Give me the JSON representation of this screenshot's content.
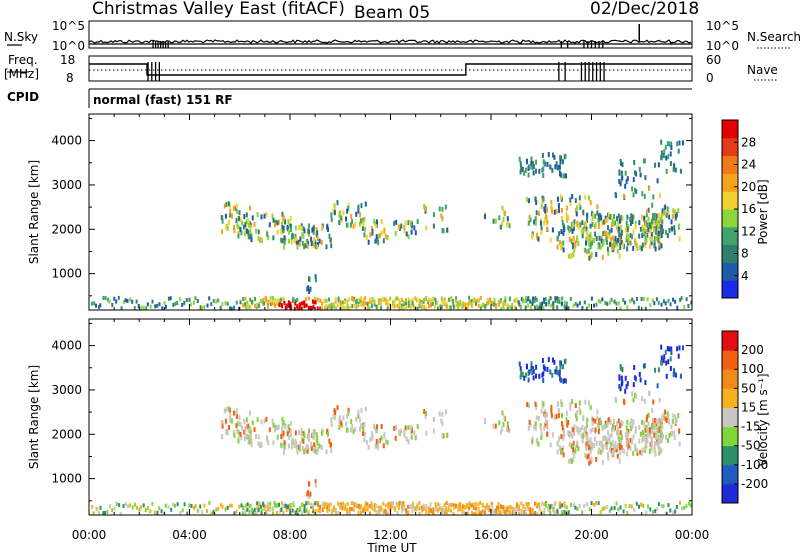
{
  "header": {
    "title": "Christmas Valley East (fitACF)",
    "beam": "Beam 05",
    "date": "02/Dec/2018"
  },
  "status_panels": {
    "noise": {
      "left_label": "N.Sky",
      "right_label": "N.Search",
      "left_ticks": [
        "10^5",
        "10^0"
      ],
      "right_ticks": [
        "10^5",
        "10^0"
      ]
    },
    "freq": {
      "left_label_1": "Freq.",
      "left_label_2": "[MHz]",
      "right_label": "Nave",
      "left_ticks": [
        "18",
        "8"
      ],
      "right_ticks": [
        "60",
        "0"
      ]
    },
    "cpid": {
      "label": "CPID",
      "text": "normal (fast) 151 RF"
    }
  },
  "chart_data": [
    {
      "type": "heatmap",
      "name": "power",
      "ylabel": "Slant Range [km]",
      "yticks": [
        1000,
        2000,
        3000,
        4000
      ],
      "ylim": [
        180,
        4600
      ],
      "xlim_hours": [
        0,
        24
      ],
      "colorbar": {
        "label": "Power [dB]",
        "ticks": [
          "4",
          "8",
          "12",
          "16",
          "20",
          "24",
          "28"
        ],
        "colors": [
          "#1a2be6",
          "#1f5aa8",
          "#2f7f6f",
          "#3fa36a",
          "#8cd63c",
          "#f2d12e",
          "#f5a21e",
          "#f07a1a",
          "#e63a16",
          "#e00000"
        ]
      }
    },
    {
      "type": "heatmap",
      "name": "velocity",
      "ylabel": "Slant Range [km]",
      "yticks": [
        1000,
        2000,
        3000,
        4000
      ],
      "ylim": [
        180,
        4600
      ],
      "xlim_hours": [
        0,
        24
      ],
      "colorbar": {
        "label": "Velocity [m s⁻¹]",
        "ticks": [
          "200",
          "100",
          "50",
          "15",
          "-15",
          "-50",
          "-100",
          "-200"
        ],
        "colors": [
          "#1e2ad6",
          "#1e5cc0",
          "#2a8f6a",
          "#7fd63a",
          "#c8c8c0",
          "#f5b21e",
          "#f08a1a",
          "#f06010",
          "#e01010"
        ]
      }
    }
  ],
  "xaxis": {
    "label": "Time UT",
    "ticks": [
      "00:00",
      "04:00",
      "08:00",
      "12:00",
      "16:00",
      "20:00",
      "00:00"
    ]
  }
}
